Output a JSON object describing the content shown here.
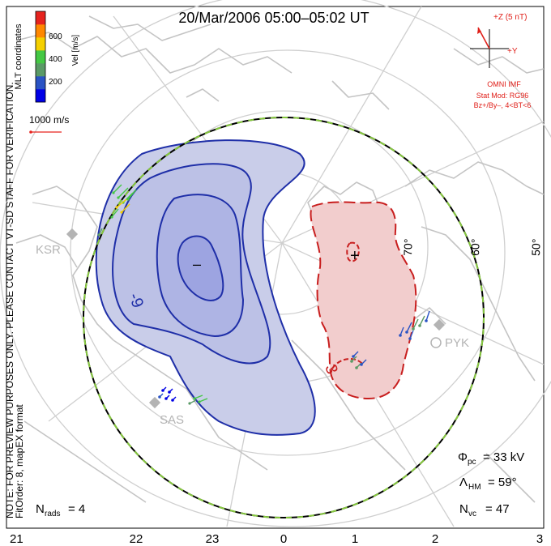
{
  "title": "20/Mar/2006 05:00–05:02 UT",
  "coord_label": "MLT coordinates",
  "colorbar": {
    "label": "Vel [m/s]",
    "ticks": [
      "600",
      "400",
      "200"
    ],
    "colors": [
      "#0000e6",
      "#2a53c4",
      "#5a9a66",
      "#44c844",
      "#f5d000",
      "#ff8800",
      "#e6231e"
    ]
  },
  "vector_scale": "1000 m/s",
  "imf": {
    "z_label": "+Z (5 nT)",
    "y_label": "+Y",
    "source": "OMNI IMF",
    "model_line1": "Stat Mod: RG96",
    "model_line2": "Bz+/By–, 4<BT<6"
  },
  "note_line1": "NOTE: FOR PREVIEW PURPOSES ONLY. PLEASE CONTACT VT-SD STAFF FOR VERIFICATION.",
  "note_line2": "FitOrder: 8, mapEX format",
  "latitude_labels": [
    "70°",
    "60°",
    "50°"
  ],
  "stations": [
    "KSR",
    "SAS",
    "PYK"
  ],
  "contour_labels": [
    "–",
    "+",
    "-9",
    "3"
  ],
  "stats": {
    "phi_pc_symbol": "Φ",
    "phi_pc_sub": "pc",
    "phi_pc_value": "= 33 kV",
    "lambda_hm_symbol": "Λ",
    "lambda_hm_sub": "HM",
    "lambda_hm_value": "= 59°",
    "n_vc_symbol": "N",
    "n_vc_sub": "vc",
    "n_vc_value": "= 47",
    "n_rads_symbol": "N",
    "n_rads_sub": "rads",
    "n_rads_value": "= 4"
  },
  "mlt_ticks": [
    "21",
    "22",
    "23",
    "0",
    "1",
    "2",
    "3"
  ],
  "colors": {
    "negative_contour": "#1f2fa8",
    "negative_fill": "#c9cde9",
    "positive_contour": "#c81e1e",
    "positive_fill": "#f2cdcd",
    "coastline": "#c4c4c4",
    "imf_red": "#e0201a",
    "station_grey": "#b4b4b4"
  }
}
